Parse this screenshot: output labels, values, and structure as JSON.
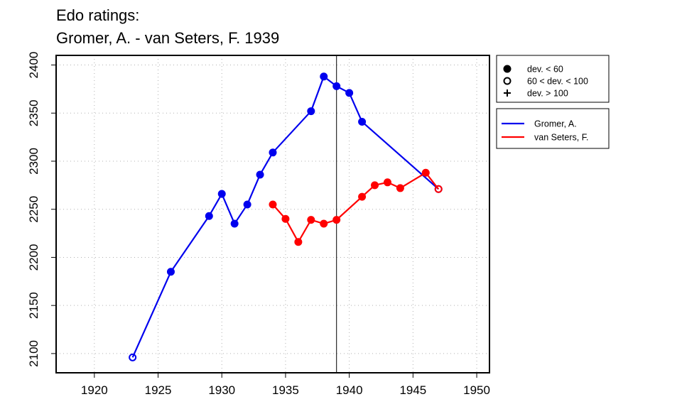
{
  "chart_data": {
    "type": "line",
    "title": "Edo ratings:",
    "subtitle": "Gromer, A. - van Seters, F. 1939",
    "xlabel": "",
    "ylabel": "",
    "xlim": [
      1917,
      1951
    ],
    "ylim": [
      2080,
      2410
    ],
    "x_ticks": [
      1920,
      1925,
      1930,
      1935,
      1940,
      1945,
      1950
    ],
    "y_ticks": [
      2100,
      2150,
      2200,
      2250,
      2300,
      2350,
      2400
    ],
    "grid": true,
    "reference_line_x": 1939,
    "series": [
      {
        "name": "Gromer, A.",
        "color": "#0000ee",
        "points": [
          {
            "x": 1923,
            "y": 2096,
            "marker": "open"
          },
          {
            "x": 1926,
            "y": 2185,
            "marker": "filled"
          },
          {
            "x": 1929,
            "y": 2243,
            "marker": "filled"
          },
          {
            "x": 1930,
            "y": 2266,
            "marker": "filled"
          },
          {
            "x": 1931,
            "y": 2235,
            "marker": "filled"
          },
          {
            "x": 1932,
            "y": 2255,
            "marker": "filled"
          },
          {
            "x": 1933,
            "y": 2286,
            "marker": "filled"
          },
          {
            "x": 1934,
            "y": 2309,
            "marker": "filled"
          },
          {
            "x": 1937,
            "y": 2352,
            "marker": "filled"
          },
          {
            "x": 1938,
            "y": 2388,
            "marker": "filled"
          },
          {
            "x": 1939,
            "y": 2378,
            "marker": "filled"
          },
          {
            "x": 1940,
            "y": 2371,
            "marker": "filled"
          },
          {
            "x": 1941,
            "y": 2341,
            "marker": "filled"
          },
          {
            "x": 1947,
            "y": 2271,
            "marker": "open"
          }
        ]
      },
      {
        "name": "van Seters, F.",
        "color": "#ff0000",
        "points": [
          {
            "x": 1934,
            "y": 2255,
            "marker": "filled"
          },
          {
            "x": 1935,
            "y": 2240,
            "marker": "filled"
          },
          {
            "x": 1936,
            "y": 2216,
            "marker": "filled"
          },
          {
            "x": 1937,
            "y": 2239,
            "marker": "filled"
          },
          {
            "x": 1938,
            "y": 2235,
            "marker": "filled"
          },
          {
            "x": 1939,
            "y": 2239,
            "marker": "filled"
          },
          {
            "x": 1941,
            "y": 2263,
            "marker": "filled"
          },
          {
            "x": 1942,
            "y": 2275,
            "marker": "filled"
          },
          {
            "x": 1943,
            "y": 2278,
            "marker": "filled"
          },
          {
            "x": 1944,
            "y": 2272,
            "marker": "filled"
          },
          {
            "x": 1946,
            "y": 2288,
            "marker": "filled"
          },
          {
            "x": 1947,
            "y": 2271,
            "marker": "open"
          }
        ]
      }
    ],
    "marker_legend": [
      {
        "symbol": "filled",
        "label": "dev. < 60"
      },
      {
        "symbol": "open",
        "label": "60 < dev. < 100"
      },
      {
        "symbol": "plus",
        "label": "dev. > 100"
      }
    ],
    "series_legend": [
      {
        "label": "Gromer, A.",
        "color": "#0000ee"
      },
      {
        "label": "van Seters, F.",
        "color": "#ff0000"
      }
    ]
  }
}
